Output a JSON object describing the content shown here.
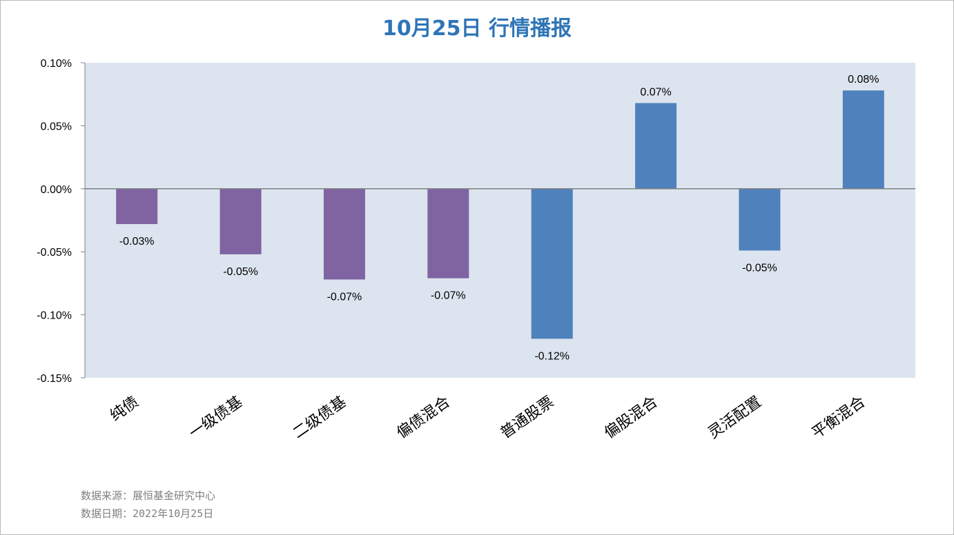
{
  "colors": {
    "title": "#2e75b6",
    "bond_series": "#8064a2",
    "equity_series": "#4f81bd",
    "plot_bg": "#dce4ef",
    "note": "#7f7f7f"
  },
  "chart_data": {
    "type": "bar",
    "title": "10月25日  行情播报",
    "categories": [
      "纯债",
      "一级债基",
      "二级债基",
      "偏债混合",
      "普通股票",
      "偏股混合",
      "灵活配置",
      "平衡混合"
    ],
    "values": [
      -0.028,
      -0.052,
      -0.072,
      -0.071,
      -0.119,
      0.068,
      -0.049,
      0.078
    ],
    "data_labels": [
      "-0.03%",
      "-0.05%",
      "-0.07%",
      "-0.07%",
      "-0.12%",
      "0.07%",
      "-0.05%",
      "0.08%"
    ],
    "bar_colors": [
      "#8064a2",
      "#8064a2",
      "#8064a2",
      "#8064a2",
      "#4f81bd",
      "#4f81bd",
      "#4f81bd",
      "#4f81bd"
    ],
    "ylim": [
      -0.15,
      0.1
    ],
    "yticks": [
      0.1,
      0.05,
      0.0,
      -0.05,
      -0.1,
      -0.15
    ],
    "ytick_labels": [
      "0.10%",
      "0.05%",
      "0.00%",
      "-0.05%",
      "-0.10%",
      "-0.15%"
    ],
    "unit": "%",
    "grid": false,
    "legend": "none"
  },
  "notes": {
    "source": "数据来源：展恒基金研究中心",
    "date": "数据日期：2022年10月25日"
  }
}
